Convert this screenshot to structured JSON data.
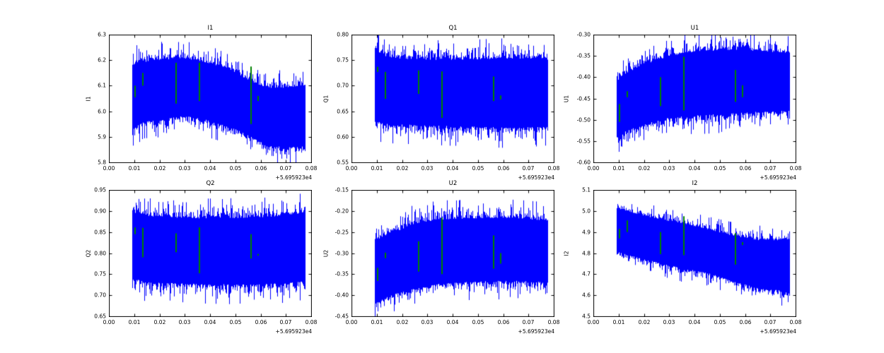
{
  "figure": {
    "background": "#ffffff",
    "axis_color": "#000000",
    "text_color": "#000000",
    "series_color": "#0000ff",
    "marker_color": "#008000",
    "x_offset_label": "+5.695923e4",
    "grid": false,
    "legend": null
  },
  "chart_data": [
    {
      "type": "line",
      "title": "I1",
      "ylabel": "I1",
      "xlabel": "",
      "xlim": [
        0.0,
        0.08
      ],
      "ylim": [
        5.8,
        6.3
      ],
      "xticks": [
        "0.00",
        "0.01",
        "0.02",
        "0.03",
        "0.04",
        "0.05",
        "0.06",
        "0.07",
        "0.08"
      ],
      "yticks": [
        "5.8",
        "5.9",
        "6.0",
        "6.1",
        "6.2",
        "6.3"
      ],
      "x_offset_label": "+5.695923e4",
      "x_data_range": [
        0.0092,
        0.0774
      ],
      "envelope": [
        [
          0.0092,
          5.92,
          6.19
        ],
        [
          0.013,
          5.95,
          6.2
        ],
        [
          0.02,
          5.96,
          6.21
        ],
        [
          0.03,
          5.975,
          6.215
        ],
        [
          0.038,
          5.96,
          6.2
        ],
        [
          0.048,
          5.93,
          6.17
        ],
        [
          0.055,
          5.9,
          6.13
        ],
        [
          0.062,
          5.86,
          6.1
        ],
        [
          0.07,
          5.85,
          6.1
        ],
        [
          0.0774,
          5.855,
          6.11
        ]
      ],
      "green_marks": [
        [
          0.0103,
          6.055,
          6.1
        ],
        [
          0.0133,
          6.1,
          6.15
        ],
        [
          0.0265,
          6.03,
          6.19
        ],
        [
          0.0357,
          6.04,
          6.19
        ],
        [
          0.0562,
          5.95,
          6.175
        ],
        [
          0.0591,
          6.04,
          6.06
        ]
      ]
    },
    {
      "type": "line",
      "title": "Q1",
      "ylabel": "Q1",
      "xlabel": "",
      "xlim": [
        0.0,
        0.08
      ],
      "ylim": [
        0.55,
        0.8
      ],
      "xticks": [
        "0.00",
        "0.01",
        "0.02",
        "0.03",
        "0.04",
        "0.05",
        "0.06",
        "0.07",
        "0.08"
      ],
      "yticks": [
        "0.55",
        "0.60",
        "0.65",
        "0.70",
        "0.75",
        "0.80"
      ],
      "x_offset_label": "+5.695923e4",
      "x_data_range": [
        0.0092,
        0.0774
      ],
      "envelope": [
        [
          0.0092,
          0.625,
          0.775
        ],
        [
          0.015,
          0.621,
          0.758
        ],
        [
          0.03,
          0.618,
          0.755
        ],
        [
          0.05,
          0.615,
          0.756
        ],
        [
          0.065,
          0.613,
          0.758
        ],
        [
          0.0774,
          0.617,
          0.755
        ]
      ],
      "green_marks": [
        [
          0.0103,
          0.727,
          0.737
        ],
        [
          0.0133,
          0.674,
          0.727
        ],
        [
          0.0265,
          0.684,
          0.73
        ],
        [
          0.0357,
          0.637,
          0.728
        ],
        [
          0.0562,
          0.67,
          0.718
        ],
        [
          0.0591,
          0.673,
          0.681
        ]
      ]
    },
    {
      "type": "line",
      "title": "U1",
      "ylabel": "U1",
      "xlabel": "",
      "xlim": [
        0.0,
        0.08
      ],
      "ylim": [
        -0.6,
        -0.3
      ],
      "xticks": [
        "0.00",
        "0.01",
        "0.02",
        "0.03",
        "0.04",
        "0.05",
        "0.06",
        "0.07",
        "0.08"
      ],
      "yticks": [
        "-0.60",
        "-0.55",
        "-0.50",
        "-0.45",
        "-0.40",
        "-0.35",
        "-0.30"
      ],
      "x_offset_label": "+5.695923e4",
      "x_data_range": [
        0.0092,
        0.0774
      ],
      "envelope": [
        [
          0.0092,
          -0.545,
          -0.41
        ],
        [
          0.013,
          -0.53,
          -0.385
        ],
        [
          0.02,
          -0.515,
          -0.365
        ],
        [
          0.03,
          -0.5,
          -0.345
        ],
        [
          0.04,
          -0.495,
          -0.335
        ],
        [
          0.055,
          -0.49,
          -0.33
        ],
        [
          0.0774,
          -0.482,
          -0.338
        ]
      ],
      "green_marks": [
        [
          0.0103,
          -0.505,
          -0.463
        ],
        [
          0.0133,
          -0.447,
          -0.433
        ],
        [
          0.0265,
          -0.468,
          -0.4
        ],
        [
          0.0357,
          -0.478,
          -0.352
        ],
        [
          0.0562,
          -0.458,
          -0.383
        ],
        [
          0.0591,
          -0.447,
          -0.419
        ]
      ]
    },
    {
      "type": "line",
      "title": "Q2",
      "ylabel": "Q2",
      "xlabel": "",
      "xlim": [
        0.0,
        0.08
      ],
      "ylim": [
        0.65,
        0.95
      ],
      "xticks": [
        "0.00",
        "0.01",
        "0.02",
        "0.03",
        "0.04",
        "0.05",
        "0.06",
        "0.07",
        "0.08"
      ],
      "yticks": [
        "0.65",
        "0.70",
        "0.75",
        "0.80",
        "0.85",
        "0.90",
        "0.95"
      ],
      "x_offset_label": "+5.695923e4",
      "x_data_range": [
        0.0092,
        0.0774
      ],
      "envelope": [
        [
          0.0092,
          0.735,
          0.903
        ],
        [
          0.015,
          0.725,
          0.893
        ],
        [
          0.03,
          0.722,
          0.888
        ],
        [
          0.05,
          0.72,
          0.889
        ],
        [
          0.065,
          0.722,
          0.892
        ],
        [
          0.0774,
          0.728,
          0.902
        ]
      ],
      "green_marks": [
        [
          0.0103,
          0.845,
          0.861
        ],
        [
          0.0133,
          0.79,
          0.86
        ],
        [
          0.0265,
          0.802,
          0.847
        ],
        [
          0.0357,
          0.752,
          0.861
        ],
        [
          0.0562,
          0.787,
          0.845
        ],
        [
          0.0591,
          0.794,
          0.798
        ]
      ]
    },
    {
      "type": "line",
      "title": "U2",
      "ylabel": "U2",
      "xlabel": "",
      "xlim": [
        0.0,
        0.08
      ],
      "ylim": [
        -0.45,
        -0.15
      ],
      "xticks": [
        "0.00",
        "0.01",
        "0.02",
        "0.03",
        "0.04",
        "0.05",
        "0.06",
        "0.07",
        "0.08"
      ],
      "yticks": [
        "-0.45",
        "-0.40",
        "-0.35",
        "-0.30",
        "-0.25",
        "-0.20",
        "-0.15"
      ],
      "x_offset_label": "+5.695923e4",
      "x_data_range": [
        0.0092,
        0.0774
      ],
      "envelope": [
        [
          0.0092,
          -0.425,
          -0.265
        ],
        [
          0.015,
          -0.405,
          -0.25
        ],
        [
          0.025,
          -0.39,
          -0.225
        ],
        [
          0.035,
          -0.378,
          -0.215
        ],
        [
          0.05,
          -0.372,
          -0.212
        ],
        [
          0.065,
          -0.37,
          -0.212
        ],
        [
          0.0774,
          -0.375,
          -0.218
        ]
      ],
      "green_marks": [
        [
          0.0103,
          -0.366,
          -0.335
        ],
        [
          0.0133,
          -0.312,
          -0.299
        ],
        [
          0.0265,
          -0.344,
          -0.272
        ],
        [
          0.0357,
          -0.35,
          -0.216
        ],
        [
          0.0562,
          -0.337,
          -0.258
        ],
        [
          0.0591,
          -0.325,
          -0.3
        ]
      ]
    },
    {
      "type": "line",
      "title": "I2",
      "ylabel": "I2",
      "xlabel": "",
      "xlim": [
        0.0,
        0.08
      ],
      "ylim": [
        4.5,
        5.1
      ],
      "xticks": [
        "0.00",
        "0.01",
        "0.02",
        "0.03",
        "0.04",
        "0.05",
        "0.06",
        "0.07",
        "0.08"
      ],
      "yticks": [
        "4.5",
        "4.6",
        "4.7",
        "4.8",
        "4.9",
        "5.0",
        "5.1"
      ],
      "x_offset_label": "+5.695923e4",
      "x_data_range": [
        0.0092,
        0.0774
      ],
      "envelope": [
        [
          0.0092,
          4.8,
          5.02
        ],
        [
          0.015,
          4.78,
          5.0
        ],
        [
          0.025,
          4.75,
          4.97
        ],
        [
          0.035,
          4.72,
          4.95
        ],
        [
          0.045,
          4.7,
          4.92
        ],
        [
          0.055,
          4.66,
          4.89
        ],
        [
          0.065,
          4.625,
          4.87
        ],
        [
          0.0774,
          4.61,
          4.87
        ]
      ],
      "green_marks": [
        [
          0.0103,
          4.87,
          4.915
        ],
        [
          0.0133,
          4.9,
          4.955
        ],
        [
          0.0265,
          4.795,
          4.9
        ],
        [
          0.0357,
          4.79,
          4.975
        ],
        [
          0.0562,
          4.745,
          4.895
        ],
        [
          0.0591,
          4.838,
          4.852
        ]
      ]
    }
  ]
}
